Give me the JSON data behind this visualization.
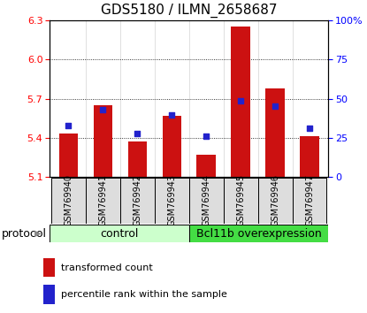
{
  "title": "GDS5180 / ILMN_2658687",
  "samples": [
    "GSM769940",
    "GSM769941",
    "GSM769942",
    "GSM769943",
    "GSM769944",
    "GSM769945",
    "GSM769946",
    "GSM769947"
  ],
  "bar_bottoms": [
    5.1,
    5.1,
    5.1,
    5.1,
    5.1,
    5.1,
    5.1,
    5.1
  ],
  "bar_tops": [
    5.43,
    5.65,
    5.37,
    5.57,
    5.27,
    6.25,
    5.78,
    5.41
  ],
  "percentile_values": [
    5.49,
    5.615,
    5.43,
    5.575,
    5.415,
    5.685,
    5.645,
    5.47
  ],
  "bar_color": "#cc1111",
  "percentile_color": "#2222cc",
  "ylim": [
    5.1,
    6.3
  ],
  "yticks_left": [
    5.1,
    5.4,
    5.7,
    6.0,
    6.3
  ],
  "yticks_right_labels": [
    "0",
    "25",
    "50",
    "75",
    "100%"
  ],
  "control_samples": 4,
  "control_label": "control",
  "overexpression_label": "Bcl11b overexpression",
  "protocol_label": "protocol",
  "legend_bar_label": "transformed count",
  "legend_dot_label": "percentile rank within the sample",
  "control_color": "#ccffcc",
  "overexpression_color": "#44dd44",
  "sample_box_color": "#dddddd",
  "bar_width": 0.55,
  "title_fontsize": 11,
  "axis_fontsize": 8,
  "label_fontsize": 7,
  "protocol_fontsize": 9,
  "legend_fontsize": 8
}
